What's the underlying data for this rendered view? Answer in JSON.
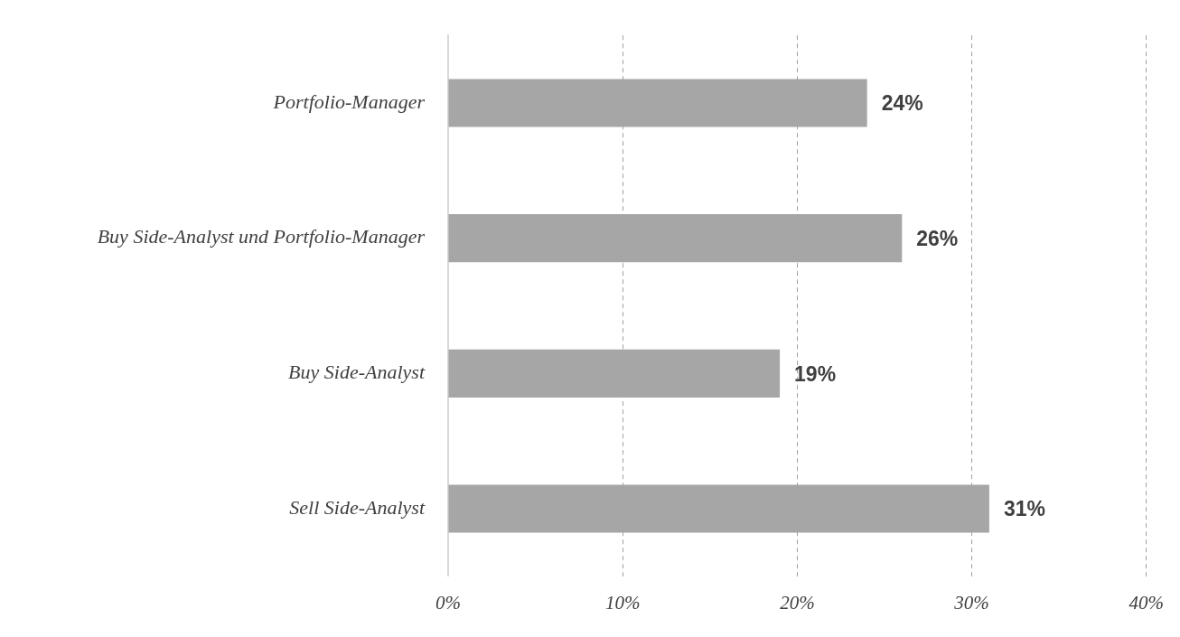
{
  "chart_data": {
    "type": "bar",
    "orientation": "horizontal",
    "categories": [
      "Portfolio-Manager",
      "Buy Side-Analyst und Portfolio-Manager",
      "Buy Side-Analyst",
      "Sell Side-Analyst"
    ],
    "values": [
      24,
      26,
      19,
      31
    ],
    "color": "#a6a6a6",
    "value_labels": [
      "24%",
      "26%",
      "19%",
      "31%"
    ],
    "xlim": [
      0,
      40
    ],
    "xticks": [
      {
        "value": 0,
        "label": "0%"
      },
      {
        "value": 10,
        "label": "10%"
      },
      {
        "value": 20,
        "label": "20%"
      },
      {
        "value": 30,
        "label": "30%"
      },
      {
        "value": 40,
        "label": "40%"
      }
    ],
    "grid": "x",
    "legend": false
  }
}
